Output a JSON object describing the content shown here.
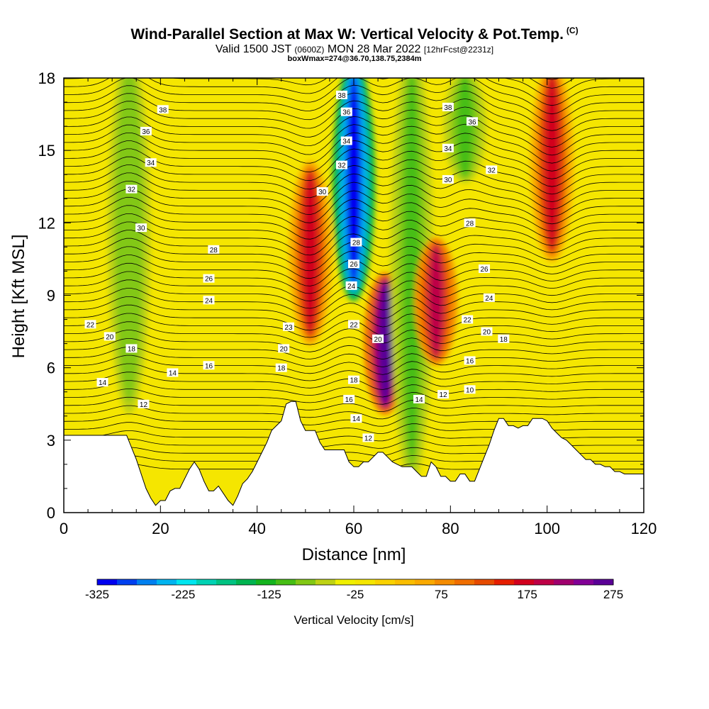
{
  "header": {
    "title": "Wind-Parallel Section at Max W: Vertical Velocity & Pot.Temp.",
    "title_mark": "(C)",
    "subtitle_valid": "Valid 1500 JST",
    "subtitle_utc": "(0600Z)",
    "subtitle_date": "MON 28 Mar 2022",
    "subtitle_fcst": "[12hrFcst@2231z]",
    "box_info": "boxWmax=274@36.70,138.75,2384m"
  },
  "colorbar": {
    "title": "Vertical Velocity [cm/s]",
    "tick_labels": [
      "-325",
      "-225",
      "-125",
      "-25",
      "75",
      "175",
      "275"
    ],
    "colors": [
      "#0000f0",
      "#0040f0",
      "#0080f0",
      "#00b4f0",
      "#00e6f0",
      "#00d2b4",
      "#00c382",
      "#00b450",
      "#14b41e",
      "#46be14",
      "#82c814",
      "#bed214",
      "#f0f000",
      "#f5e600",
      "#fad200",
      "#fabe00",
      "#faaa00",
      "#f58c00",
      "#f06e00",
      "#e64b00",
      "#e61e00",
      "#d2001e",
      "#be0046",
      "#a0006e",
      "#820096",
      "#5a0096"
    ]
  },
  "chart_data": {
    "type": "heatmap",
    "xlabel": "Distance [nm]",
    "ylabel": "Height [Kft MSL]",
    "xlim": [
      0,
      120
    ],
    "ylim": [
      0,
      18
    ],
    "xticks": [
      0,
      20,
      40,
      60,
      80,
      100,
      120
    ],
    "yticks": [
      0,
      3,
      6,
      9,
      12,
      15,
      18
    ],
    "value_range": [
      -325,
      275
    ],
    "updraft_cores": [
      {
        "x": 13.5,
        "y_bottom": 5.2,
        "y_top": 18,
        "w_cms": -90
      },
      {
        "x": 51,
        "y_bottom": 7.5,
        "y_top": 14,
        "w_cms": 175
      },
      {
        "x": 60,
        "y_bottom": 9.5,
        "y_top": 18,
        "w_cms": -325
      },
      {
        "x": 66.5,
        "y_bottom": 4.5,
        "y_top": 9.5,
        "w_cms": 275
      },
      {
        "x": 72,
        "y_bottom": 2.5,
        "y_top": 18,
        "w_cms": -110
      },
      {
        "x": 77,
        "y_bottom": 6.5,
        "y_top": 11,
        "w_cms": 190
      },
      {
        "x": 83,
        "y_bottom": 14,
        "y_top": 18,
        "w_cms": -110
      },
      {
        "x": 101,
        "y_bottom": 11,
        "y_top": 18,
        "w_cms": 170
      }
    ],
    "terrain": [
      [
        0,
        3.2
      ],
      [
        13,
        3.2
      ],
      [
        14,
        2.7
      ],
      [
        15,
        2.2
      ],
      [
        16,
        1.6
      ],
      [
        17,
        1.0
      ],
      [
        18,
        0.6
      ],
      [
        19,
        0.3
      ],
      [
        20,
        0.5
      ],
      [
        21,
        0.5
      ],
      [
        22,
        0.9
      ],
      [
        23,
        1.0
      ],
      [
        24,
        1.0
      ],
      [
        25,
        1.4
      ],
      [
        26,
        1.8
      ],
      [
        27,
        2.1
      ],
      [
        28,
        1.8
      ],
      [
        29,
        1.3
      ],
      [
        30,
        0.9
      ],
      [
        31,
        0.9
      ],
      [
        32,
        1.1
      ],
      [
        33,
        0.8
      ],
      [
        34,
        0.5
      ],
      [
        35,
        0.3
      ],
      [
        36,
        0.7
      ],
      [
        37,
        1.2
      ],
      [
        38,
        1.4
      ],
      [
        39,
        1.7
      ],
      [
        40,
        2.1
      ],
      [
        41,
        2.5
      ],
      [
        42,
        2.9
      ],
      [
        43,
        3.4
      ],
      [
        44,
        3.6
      ],
      [
        45,
        3.8
      ],
      [
        46,
        4.5
      ],
      [
        47,
        4.6
      ],
      [
        48,
        4.6
      ],
      [
        49,
        3.8
      ],
      [
        50,
        3.4
      ],
      [
        51,
        3.4
      ],
      [
        52,
        3.4
      ],
      [
        53,
        2.9
      ],
      [
        54,
        2.6
      ],
      [
        55,
        2.6
      ],
      [
        56,
        2.6
      ],
      [
        57,
        2.6
      ],
      [
        58,
        2.6
      ],
      [
        59,
        2.1
      ],
      [
        60,
        1.9
      ],
      [
        61,
        1.9
      ],
      [
        62,
        2.1
      ],
      [
        63,
        2.1
      ],
      [
        64,
        2.3
      ],
      [
        65,
        2.5
      ],
      [
        66,
        2.5
      ],
      [
        67,
        2.3
      ],
      [
        68,
        2.1
      ],
      [
        69,
        2.0
      ],
      [
        70,
        1.9
      ],
      [
        71,
        1.9
      ],
      [
        72,
        1.9
      ],
      [
        73,
        1.7
      ],
      [
        74,
        1.5
      ],
      [
        75,
        1.5
      ],
      [
        76,
        2.1
      ],
      [
        77,
        1.9
      ],
      [
        78,
        1.5
      ],
      [
        79,
        1.5
      ],
      [
        80,
        1.3
      ],
      [
        81,
        1.3
      ],
      [
        82,
        1.6
      ],
      [
        83,
        1.6
      ],
      [
        84,
        1.3
      ],
      [
        85,
        1.3
      ],
      [
        86,
        1.8
      ],
      [
        87,
        2.3
      ],
      [
        88,
        2.8
      ],
      [
        89,
        3.4
      ],
      [
        90,
        3.9
      ],
      [
        91,
        3.9
      ],
      [
        92,
        3.6
      ],
      [
        93,
        3.6
      ],
      [
        94,
        3.5
      ],
      [
        95,
        3.6
      ],
      [
        96,
        3.6
      ],
      [
        97,
        3.9
      ],
      [
        98,
        3.9
      ],
      [
        99,
        3.9
      ],
      [
        100,
        3.8
      ],
      [
        101,
        3.5
      ],
      [
        102,
        3.3
      ],
      [
        103,
        3.1
      ],
      [
        104,
        3.0
      ],
      [
        105,
        2.8
      ],
      [
        106,
        2.6
      ],
      [
        107,
        2.4
      ],
      [
        108,
        2.2
      ],
      [
        109,
        2.2
      ],
      [
        110,
        2.0
      ],
      [
        111,
        2.0
      ],
      [
        112,
        1.9
      ],
      [
        113,
        1.9
      ],
      [
        114,
        1.7
      ],
      [
        115,
        1.7
      ],
      [
        116,
        1.6
      ],
      [
        117,
        1.6
      ],
      [
        118,
        1.6
      ],
      [
        119,
        1.6
      ],
      [
        120,
        1.6
      ]
    ],
    "contour_labels": [
      {
        "text": "38",
        "x": 20.5,
        "y": 16.7
      },
      {
        "text": "36",
        "x": 17,
        "y": 15.8
      },
      {
        "text": "34",
        "x": 18,
        "y": 14.5
      },
      {
        "text": "32",
        "x": 14,
        "y": 13.4
      },
      {
        "text": "30",
        "x": 16,
        "y": 11.8
      },
      {
        "text": "28",
        "x": 31,
        "y": 10.9
      },
      {
        "text": "26",
        "x": 30,
        "y": 9.7
      },
      {
        "text": "24",
        "x": 30,
        "y": 8.8
      },
      {
        "text": "22",
        "x": 5.5,
        "y": 7.8
      },
      {
        "text": "20",
        "x": 9.5,
        "y": 7.3
      },
      {
        "text": "18",
        "x": 14,
        "y": 6.8
      },
      {
        "text": "16",
        "x": 30,
        "y": 6.1
      },
      {
        "text": "14",
        "x": 22.5,
        "y": 5.8
      },
      {
        "text": "14",
        "x": 8,
        "y": 5.4
      },
      {
        "text": "12",
        "x": 16.5,
        "y": 4.5
      },
      {
        "text": "38",
        "x": 57.5,
        "y": 17.3
      },
      {
        "text": "36",
        "x": 58.5,
        "y": 16.6
      },
      {
        "text": "34",
        "x": 58.5,
        "y": 15.4
      },
      {
        "text": "32",
        "x": 57.5,
        "y": 14.4
      },
      {
        "text": "30",
        "x": 53.5,
        "y": 13.3
      },
      {
        "text": "28",
        "x": 60.5,
        "y": 11.2
      },
      {
        "text": "26",
        "x": 60,
        "y": 10.3
      },
      {
        "text": "24",
        "x": 59.5,
        "y": 9.4
      },
      {
        "text": "22",
        "x": 60,
        "y": 7.8
      },
      {
        "text": "23",
        "x": 46.5,
        "y": 7.7
      },
      {
        "text": "20",
        "x": 45.5,
        "y": 6.8
      },
      {
        "text": "18",
        "x": 45,
        "y": 6.0
      },
      {
        "text": "20",
        "x": 65,
        "y": 7.2
      },
      {
        "text": "18",
        "x": 60,
        "y": 5.5
      },
      {
        "text": "16",
        "x": 59,
        "y": 4.7
      },
      {
        "text": "14",
        "x": 60.5,
        "y": 3.9
      },
      {
        "text": "12",
        "x": 63,
        "y": 3.1
      },
      {
        "text": "14",
        "x": 73.5,
        "y": 4.7
      },
      {
        "text": "12",
        "x": 78.5,
        "y": 4.9
      },
      {
        "text": "10",
        "x": 84,
        "y": 5.1
      },
      {
        "text": "38",
        "x": 79.5,
        "y": 16.8
      },
      {
        "text": "36",
        "x": 84.5,
        "y": 16.2
      },
      {
        "text": "34",
        "x": 79.5,
        "y": 15.1
      },
      {
        "text": "32",
        "x": 88.5,
        "y": 14.2
      },
      {
        "text": "30",
        "x": 79.5,
        "y": 13.8
      },
      {
        "text": "28",
        "x": 84,
        "y": 12.0
      },
      {
        "text": "26",
        "x": 87,
        "y": 10.1
      },
      {
        "text": "24",
        "x": 88,
        "y": 8.9
      },
      {
        "text": "22",
        "x": 83.5,
        "y": 8.0
      },
      {
        "text": "20",
        "x": 87.5,
        "y": 7.5
      },
      {
        "text": "18",
        "x": 91,
        "y": 7.2
      },
      {
        "text": "16",
        "x": 84,
        "y": 6.3
      }
    ]
  }
}
